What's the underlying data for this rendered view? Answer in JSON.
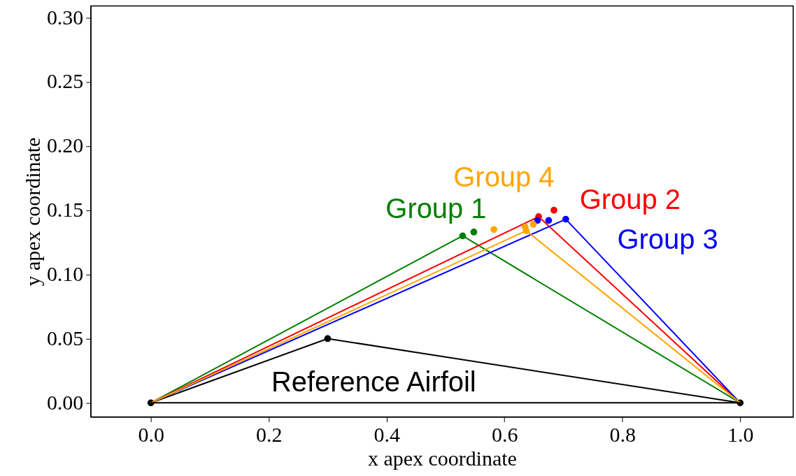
{
  "chart_data": {
    "type": "line",
    "xlabel": "x apex coordinate",
    "ylabel": "y apex coordinate",
    "xlim": [
      -0.102,
      1.09
    ],
    "ylim": [
      -0.011,
      0.309
    ],
    "xticks": [
      {
        "value": 0,
        "label": "0.0"
      },
      0.2,
      0.4,
      0.6,
      0.8,
      {
        "value": 1,
        "label": "1.0"
      }
    ],
    "yticks": [
      {
        "value": 0,
        "label": "0.00"
      },
      0.05,
      {
        "value": 0.1,
        "label": "0.10"
      },
      0.15,
      {
        "value": 0.2,
        "label": "0.20"
      },
      0.25,
      {
        "value": 0.3,
        "label": "0.30"
      }
    ],
    "grid": false,
    "line_style": "solid",
    "series": [
      {
        "name": "Reference Airfoil",
        "color": "#000000",
        "type": "line",
        "marker": "circle",
        "x": [
          0,
          0.3,
          1
        ],
        "values": [
          0,
          0.05,
          0
        ]
      },
      {
        "name": "Group 1",
        "color": "#008000",
        "type": "line",
        "marker": "none",
        "x": [
          0,
          0.529,
          1
        ],
        "values": [
          0,
          0.13,
          0
        ]
      },
      {
        "name": "Group 2",
        "color": "#ff0000",
        "type": "line",
        "marker": "none",
        "x": [
          0,
          0.658,
          1
        ],
        "values": [
          0,
          0.145,
          0
        ]
      },
      {
        "name": "Group 3",
        "color": "#0000ff",
        "type": "line",
        "marker": "none",
        "x": [
          0,
          0.704,
          1
        ],
        "values": [
          0,
          0.143,
          0
        ]
      },
      {
        "name": "Group 4",
        "color": "#ffa500",
        "type": "line",
        "marker": "none",
        "x": [
          0,
          0.637,
          1
        ],
        "values": [
          0,
          0.134,
          0
        ]
      },
      {
        "color": "#000000",
        "marker": "none",
        "x": [
          0,
          1
        ],
        "values": [
          0,
          0
        ]
      },
      {
        "color": "#008000",
        "type": "scatter",
        "marker": "circle",
        "x": [
          0.529,
          0.548
        ],
        "values": [
          0.13,
          0.133
        ]
      },
      {
        "color": "#ff0000",
        "type": "scatter",
        "marker": "circle",
        "x": [
          0.658,
          0.684
        ],
        "values": [
          0.145,
          0.15
        ]
      },
      {
        "color": "#0000ff",
        "type": "scatter",
        "marker": "circle",
        "x": [
          0.656,
          0.675,
          0.704
        ],
        "values": [
          0.142,
          0.142,
          0.143
        ]
      },
      {
        "color": "#ffa500",
        "type": "scatter",
        "marker": "circle",
        "x": [
          0.582,
          0.635,
          0.637,
          0.649
        ],
        "values": [
          0.135,
          0.137,
          0.134,
          0.139
        ]
      }
    ]
  }
}
